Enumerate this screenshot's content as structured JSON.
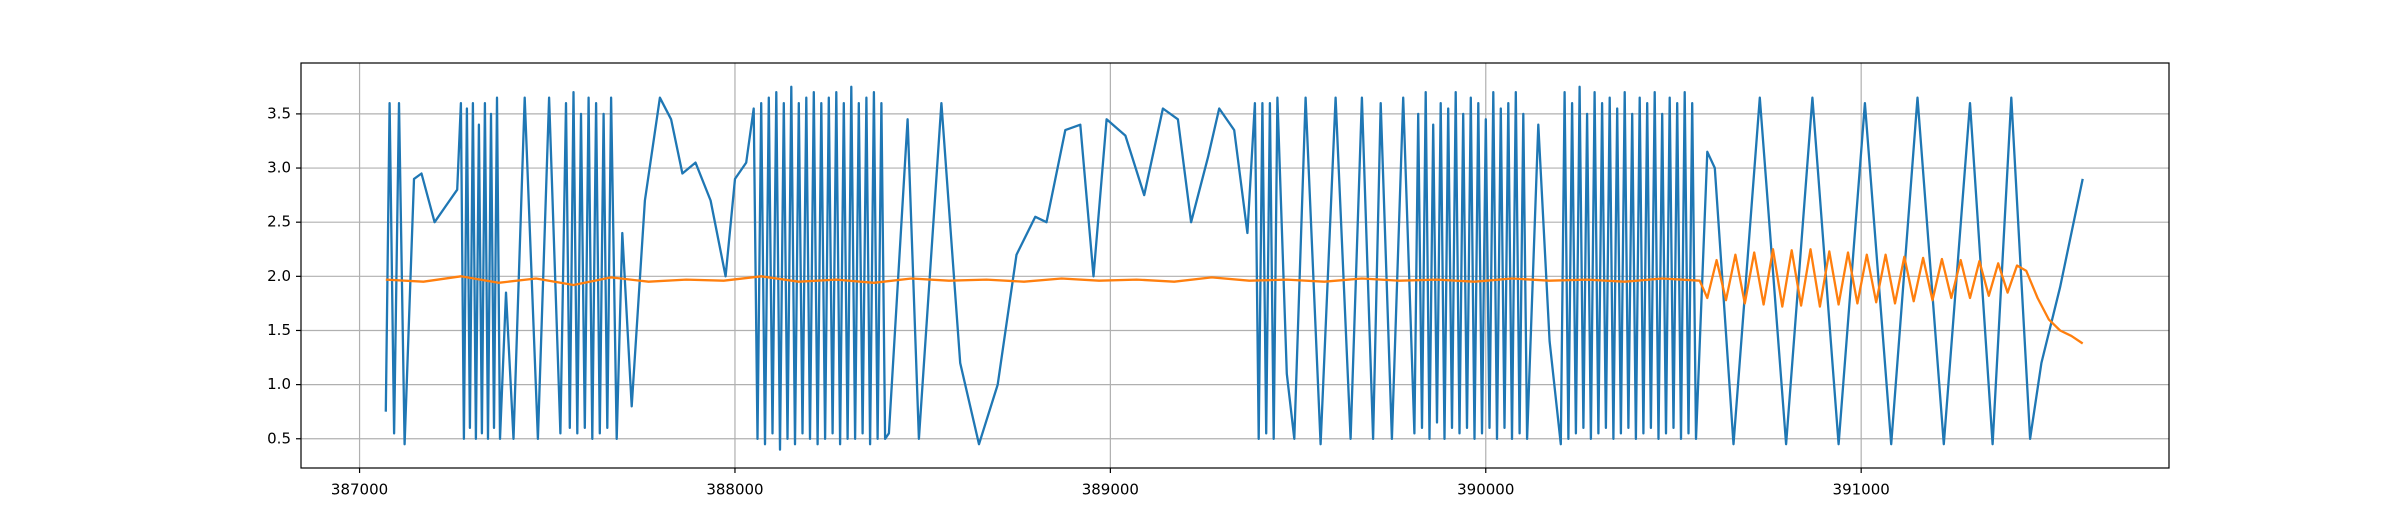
{
  "chart_data": {
    "type": "line",
    "xlim": [
      386844,
      391820
    ],
    "ylim": [
      0.23,
      3.97
    ],
    "xticks": [
      387000,
      388000,
      389000,
      390000,
      391000
    ],
    "yticks": [
      0.5,
      {
        "value": 1,
        "label": "1.0"
      },
      1.5,
      {
        "value": 2,
        "label": "2.0"
      },
      2.5,
      {
        "value": 3,
        "label": "3.0"
      },
      3.5
    ],
    "grid": true,
    "series": [
      {
        "color": "#1f77b4",
        "x": [
          387070,
          387080,
          387092,
          387105,
          387120,
          387145,
          387165,
          387200,
          387230,
          387260,
          387270,
          387278,
          387286,
          387294,
          387302,
          387310,
          387318,
          387326,
          387334,
          387342,
          387350,
          387358,
          387366,
          387374,
          387390,
          387410,
          387440,
          387475,
          387505,
          387535,
          387550,
          387560,
          387570,
          387580,
          387590,
          387600,
          387610,
          387620,
          387630,
          387640,
          387650,
          387660,
          387670,
          387685,
          387700,
          387725,
          387760,
          387800,
          387830,
          387860,
          387895,
          387935,
          387975,
          388000,
          388030,
          388050,
          388060,
          388070,
          388080,
          388090,
          388100,
          388110,
          388120,
          388130,
          388140,
          388150,
          388160,
          388170,
          388180,
          388190,
          388200,
          388210,
          388220,
          388230,
          388240,
          388250,
          388260,
          388270,
          388280,
          388290,
          388300,
          388310,
          388320,
          388330,
          388340,
          388350,
          388360,
          388370,
          388380,
          388390,
          388400,
          388410,
          388460,
          388490,
          388550,
          388600,
          388650,
          388700,
          388750,
          388800,
          388830,
          388880,
          388920,
          388955,
          388990,
          389040,
          389090,
          389140,
          389180,
          389215,
          389260,
          389290,
          389330,
          389365,
          389385,
          389395,
          389405,
          389415,
          389425,
          389435,
          389445,
          389470,
          389490,
          389520,
          389560,
          389600,
          389640,
          389670,
          389700,
          389720,
          389750,
          389780,
          389810,
          389820,
          389830,
          389840,
          389850,
          389860,
          389870,
          389880,
          389890,
          389900,
          389910,
          389920,
          389930,
          389940,
          389950,
          389960,
          389970,
          389980,
          389990,
          390000,
          390010,
          390020,
          390030,
          390040,
          390050,
          390060,
          390070,
          390080,
          390090,
          390100,
          390110,
          390140,
          390170,
          390200,
          390210,
          390220,
          390230,
          390240,
          390250,
          390260,
          390270,
          390280,
          390290,
          390300,
          390310,
          390320,
          390330,
          390340,
          390350,
          390360,
          390370,
          390380,
          390390,
          390400,
          390410,
          390420,
          390430,
          390440,
          390450,
          390460,
          390470,
          390480,
          390490,
          390500,
          390510,
          390520,
          390530,
          390540,
          390550,
          390560,
          390590,
          390610,
          390660,
          390730,
          390800,
          390870,
          390940,
          391010,
          391080,
          391150,
          391220,
          391290,
          391350,
          391400,
          391450,
          391480,
          391530,
          391590
        ],
        "values": [
          0.75,
          3.6,
          0.55,
          3.6,
          0.45,
          2.9,
          2.95,
          2.5,
          2.65,
          2.8,
          3.6,
          0.5,
          3.55,
          0.6,
          3.6,
          0.5,
          3.4,
          0.55,
          3.6,
          0.5,
          3.5,
          0.6,
          3.65,
          0.5,
          1.85,
          0.5,
          3.65,
          0.5,
          3.65,
          0.55,
          3.6,
          0.6,
          3.7,
          0.55,
          3.5,
          0.6,
          3.65,
          0.5,
          3.6,
          0.55,
          3.5,
          0.6,
          3.65,
          0.5,
          2.4,
          0.8,
          2.7,
          3.65,
          3.45,
          2.95,
          3.05,
          2.7,
          2.0,
          2.9,
          3.05,
          3.55,
          0.5,
          3.6,
          0.45,
          3.65,
          0.55,
          3.7,
          0.4,
          3.6,
          0.5,
          3.75,
          0.45,
          3.6,
          0.55,
          3.65,
          0.5,
          3.7,
          0.45,
          3.6,
          0.5,
          3.65,
          0.55,
          3.7,
          0.45,
          3.6,
          0.5,
          3.75,
          0.5,
          3.6,
          0.55,
          3.65,
          0.45,
          3.7,
          0.5,
          3.6,
          0.5,
          0.55,
          3.45,
          0.5,
          3.6,
          1.2,
          0.45,
          1.0,
          2.2,
          2.55,
          2.5,
          3.35,
          3.4,
          2.0,
          3.45,
          3.3,
          2.75,
          3.55,
          3.45,
          2.5,
          3.1,
          3.55,
          3.35,
          2.4,
          3.6,
          0.5,
          3.6,
          0.55,
          3.6,
          0.5,
          3.65,
          1.1,
          0.5,
          3.65,
          0.45,
          3.65,
          0.5,
          3.65,
          0.5,
          3.6,
          0.5,
          3.65,
          0.55,
          3.5,
          0.6,
          3.7,
          0.5,
          3.4,
          0.65,
          3.6,
          0.5,
          3.55,
          0.6,
          3.7,
          0.55,
          3.5,
          0.6,
          3.65,
          0.5,
          3.6,
          0.55,
          3.45,
          0.6,
          3.7,
          0.5,
          3.55,
          0.6,
          3.6,
          0.5,
          3.7,
          0.55,
          3.5,
          0.5,
          3.4,
          1.4,
          0.45,
          3.7,
          0.5,
          3.6,
          0.55,
          3.75,
          0.6,
          3.5,
          0.5,
          3.7,
          0.55,
          3.6,
          0.6,
          3.65,
          0.5,
          3.55,
          0.55,
          3.7,
          0.6,
          3.5,
          0.5,
          3.65,
          0.55,
          3.6,
          0.6,
          3.7,
          0.5,
          3.5,
          0.55,
          3.65,
          0.6,
          3.6,
          0.5,
          3.7,
          0.55,
          3.6,
          0.5,
          3.15,
          3.0,
          0.45,
          3.65,
          0.45,
          3.65,
          0.45,
          3.6,
          0.45,
          3.65,
          0.45,
          3.6,
          0.45,
          3.65,
          0.5,
          1.2,
          1.9,
          2.9
        ]
      },
      {
        "color": "#ff7f0e",
        "x": [
          387070,
          387170,
          387270,
          387370,
          387470,
          387570,
          387670,
          387770,
          387870,
          387970,
          388070,
          388170,
          388270,
          388370,
          388470,
          388570,
          388670,
          388770,
          388870,
          388970,
          389070,
          389170,
          389270,
          389370,
          389470,
          389570,
          389670,
          389770,
          389870,
          389970,
          390070,
          390170,
          390270,
          390370,
          390470,
          390570,
          390590,
          390615,
          390640,
          390665,
          390690,
          390715,
          390740,
          390765,
          390790,
          390815,
          390840,
          390865,
          390890,
          390915,
          390940,
          390965,
          390990,
          391015,
          391040,
          391065,
          391090,
          391115,
          391140,
          391165,
          391190,
          391215,
          391240,
          391265,
          391290,
          391315,
          391340,
          391365,
          391390,
          391415,
          391440,
          391470,
          391500,
          391530,
          391560,
          391590
        ],
        "values": [
          1.97,
          1.95,
          2.0,
          1.94,
          1.98,
          1.92,
          1.99,
          1.95,
          1.97,
          1.96,
          2.0,
          1.95,
          1.97,
          1.94,
          1.98,
          1.96,
          1.97,
          1.95,
          1.98,
          1.96,
          1.97,
          1.95,
          1.99,
          1.96,
          1.97,
          1.95,
          1.98,
          1.96,
          1.97,
          1.95,
          1.98,
          1.96,
          1.97,
          1.95,
          1.98,
          1.96,
          1.8,
          2.15,
          1.78,
          2.2,
          1.75,
          2.22,
          1.74,
          2.25,
          1.72,
          2.24,
          1.73,
          2.25,
          1.72,
          2.23,
          1.74,
          2.22,
          1.75,
          2.2,
          1.76,
          2.2,
          1.75,
          2.18,
          1.77,
          2.17,
          1.78,
          2.16,
          1.8,
          2.15,
          1.8,
          2.14,
          1.82,
          2.12,
          1.85,
          2.1,
          2.05,
          1.8,
          1.6,
          1.5,
          1.45,
          1.38
        ]
      }
    ]
  }
}
